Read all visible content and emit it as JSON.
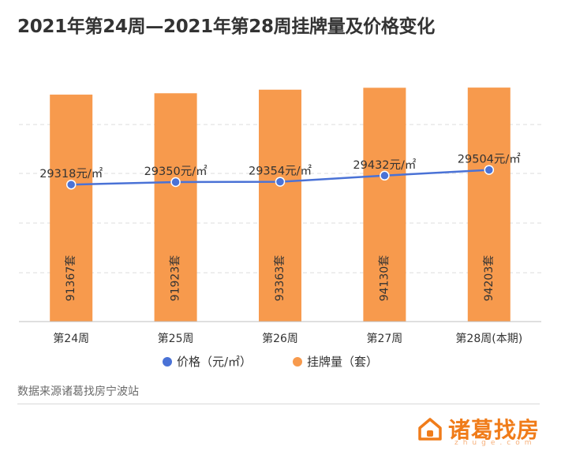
{
  "title": "2021年第24周—2021年第28周挂牌量及价格变化",
  "source": "数据来源诸葛找房宁波站",
  "brand": "诸葛找房",
  "brand_sub": "zhuge.com",
  "colors": {
    "bar": "#f79a4d",
    "line": "#4a72d6",
    "grid": "#dcdcdc",
    "text": "#333333",
    "brand": "#f07c1a"
  },
  "chart_data": {
    "type": "bar",
    "categories": [
      "第24周",
      "第25周",
      "第26周",
      "第27周",
      "第28周(本期)"
    ],
    "series": [
      {
        "name": "价格（元/㎡）",
        "kind": "line",
        "values": [
          29318,
          29350,
          29354,
          29432,
          29504
        ],
        "labels": [
          "29318元/㎡",
          "29350元/㎡",
          "29354元/㎡",
          "29432元/㎡",
          "29504元/㎡"
        ]
      },
      {
        "name": "挂牌量（套）",
        "kind": "bar",
        "values": [
          91367,
          91923,
          93363,
          94130,
          94203
        ],
        "labels": [
          "91367套",
          "91923套",
          "93363套",
          "94130套",
          "94203套"
        ]
      }
    ],
    "legend_position": "bottom",
    "grid": true
  }
}
